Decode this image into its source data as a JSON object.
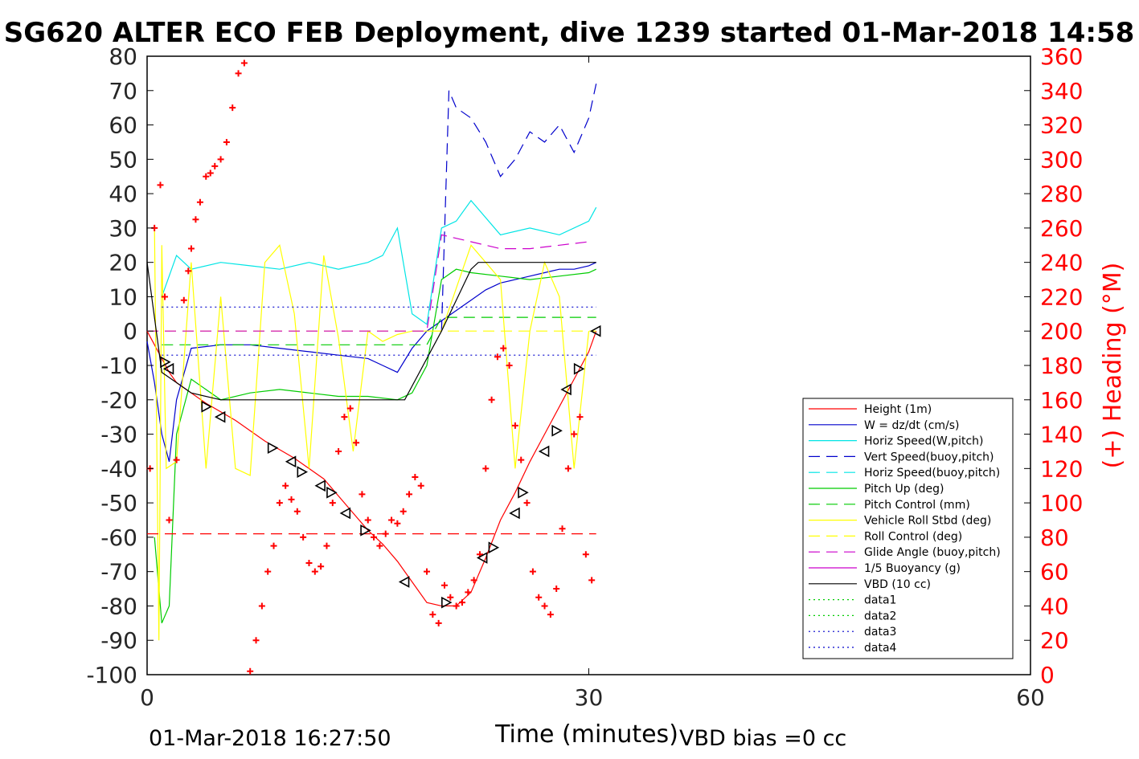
{
  "chart_data": {
    "type": "line",
    "title": "SG620 ALTER ECO FEB Deployment, dive 1239 started 01-Mar-2018 14:58",
    "xlabel": "Time (minutes)",
    "ylabel_left": "",
    "ylabel_right": "(+) Heading (°M)",
    "xlim": [
      0,
      60
    ],
    "ylim_left": [
      -100,
      80
    ],
    "ylim_right": [
      0,
      360
    ],
    "xticks": [
      "0",
      "30",
      "60"
    ],
    "yticks_left": [
      "80",
      "70",
      "60",
      "50",
      "40",
      "30",
      "20",
      "10",
      "0",
      "-10",
      "-20",
      "-30",
      "-40",
      "-50",
      "-60",
      "-70",
      "-80",
      "-90",
      "-100"
    ],
    "yticks_right": [
      "360",
      "340",
      "320",
      "300",
      "280",
      "260",
      "240",
      "220",
      "200",
      "180",
      "160",
      "140",
      "120",
      "100",
      "80",
      "60",
      "40",
      "20",
      "0"
    ],
    "footer_left": "01-Mar-2018 16:27:50",
    "footer_right": "VBD bias =0 cc",
    "legend_position": "right-inside",
    "legend": [
      {
        "label": "Height (1m)",
        "color": "#ff0000",
        "style": "solid"
      },
      {
        "label": "W = dz/dt (cm/s)",
        "color": "#0000cc",
        "style": "solid"
      },
      {
        "label": "Horiz Speed(W,pitch)",
        "color": "#00e5e5",
        "style": "solid"
      },
      {
        "label": "Vert Speed(buoy,pitch)",
        "color": "#0000cc",
        "style": "dashed"
      },
      {
        "label": "Horiz Speed(buoy,pitch)",
        "color": "#00e5e5",
        "style": "dashed"
      },
      {
        "label": "Pitch Up (deg)",
        "color": "#00cc00",
        "style": "solid"
      },
      {
        "label": "Pitch Control (mm)",
        "color": "#00cc00",
        "style": "dashed"
      },
      {
        "label": "Vehicle Roll Stbd (deg)",
        "color": "#ffff00",
        "style": "solid"
      },
      {
        "label": "Roll Control (deg)",
        "color": "#ffff00",
        "style": "dashed"
      },
      {
        "label": "Glide Angle (buoy,pitch)",
        "color": "#cc00cc",
        "style": "dashed"
      },
      {
        "label": "1/5 Buoyancy (g)",
        "color": "#cc00cc",
        "style": "solid"
      },
      {
        "label": "VBD (10 cc)",
        "color": "#000000",
        "style": "solid"
      },
      {
        "label": "data1",
        "color": "#00cc00",
        "style": "dotted"
      },
      {
        "label": "data2",
        "color": "#00cc00",
        "style": "dotted"
      },
      {
        "label": "data3",
        "color": "#0000cc",
        "style": "dotted"
      },
      {
        "label": "data4",
        "color": "#0000cc",
        "style": "dotted"
      }
    ],
    "series": [
      {
        "name": "Height (1m)",
        "axis": "left",
        "color": "#ff0000",
        "x": [
          0,
          0.5,
          1,
          1.5,
          2,
          3,
          4,
          6,
          8,
          10,
          12,
          14,
          15,
          16,
          17,
          18,
          19,
          20,
          21,
          22,
          23,
          24,
          25,
          26,
          27,
          28,
          29,
          30,
          30.5
        ],
        "y": [
          0,
          -4,
          -8,
          -12,
          -15,
          -18,
          -21,
          -26,
          -32,
          -37,
          -43,
          -53,
          -58,
          -62,
          -67,
          -73,
          -79,
          -80,
          -80,
          -76,
          -66,
          -55,
          -47,
          -38,
          -30,
          -22,
          -14,
          -6,
          0
        ]
      },
      {
        "name": "W = dz/dt (cm/s)",
        "axis": "left",
        "color": "#0000cc",
        "x": [
          0,
          0.5,
          1,
          1.5,
          2,
          3,
          5,
          7,
          9,
          11,
          13,
          15,
          16,
          17,
          18,
          19,
          20,
          21,
          22,
          23,
          24,
          25,
          26,
          27,
          28,
          29,
          30,
          30.5
        ],
        "y": [
          -3,
          -15,
          -30,
          -38,
          -20,
          -5,
          -4,
          -4,
          -5,
          -6,
          -7,
          -8,
          -10,
          -12,
          -5,
          0,
          3,
          6,
          9,
          12,
          14,
          15,
          16,
          17,
          18,
          18,
          19,
          20
        ]
      },
      {
        "name": "Horiz Speed(W,pitch)",
        "axis": "left",
        "color": "#00e5e5",
        "x": [
          1,
          2,
          3,
          5,
          7,
          9,
          11,
          13,
          15,
          16,
          17,
          18,
          19,
          20,
          21,
          22,
          24,
          26,
          28,
          30,
          30.5
        ],
        "y": [
          10,
          22,
          18,
          20,
          19,
          18,
          20,
          18,
          20,
          22,
          30,
          5,
          2,
          30,
          32,
          38,
          28,
          30,
          28,
          32,
          36
        ]
      },
      {
        "name": "Vert Speed(buoy,pitch)",
        "axis": "left",
        "color": "#0000cc",
        "x": [
          20,
          20.5,
          21,
          22,
          23,
          24,
          25,
          26,
          27,
          28,
          29,
          30,
          30.5
        ],
        "y": [
          0,
          70,
          65,
          62,
          55,
          45,
          50,
          58,
          55,
          60,
          52,
          62,
          72
        ]
      },
      {
        "name": "Pitch Up (deg)",
        "axis": "left",
        "color": "#00cc00",
        "x": [
          0.5,
          1,
          1.5,
          2,
          3,
          5,
          7,
          9,
          11,
          13,
          15,
          17,
          18,
          19,
          20,
          21,
          22,
          24,
          26,
          28,
          30,
          30.5
        ],
        "y": [
          -60,
          -85,
          -80,
          -30,
          -14,
          -20,
          -18,
          -17,
          -18,
          -19,
          -19,
          -20,
          -18,
          -10,
          15,
          18,
          17,
          16,
          15,
          16,
          17,
          18
        ]
      },
      {
        "name": "Pitch Control (mm)",
        "axis": "left",
        "color": "#00cc00",
        "x": [
          1,
          19,
          20,
          30.5
        ],
        "y": [
          -4,
          -4,
          4,
          4
        ]
      },
      {
        "name": "Vehicle Roll Stbd (deg)",
        "axis": "left",
        "color": "#ffff00",
        "x": [
          0.5,
          0.8,
          1,
          1.3,
          2,
          3,
          4,
          5,
          6,
          7,
          8,
          9,
          10,
          11,
          12,
          13,
          14,
          15,
          16,
          17,
          18,
          20,
          22,
          24,
          25,
          26,
          27,
          28,
          29,
          30
        ],
        "y": [
          30,
          -90,
          25,
          -40,
          -38,
          20,
          -40,
          10,
          -40,
          -42,
          20,
          25,
          5,
          -40,
          22,
          -2,
          -35,
          0,
          -3,
          -1,
          0,
          0,
          25,
          15,
          -40,
          0,
          20,
          10,
          -40,
          0
        ]
      },
      {
        "name": "Roll Control (deg)",
        "axis": "left",
        "color": "#ffff00",
        "x": [
          0,
          30.5
        ],
        "y": [
          0,
          0
        ]
      },
      {
        "name": "Glide Angle (buoy,pitch)",
        "axis": "left",
        "color": "#cc00cc",
        "x": [
          0,
          19,
          20,
          22,
          24,
          26,
          28,
          30
        ],
        "y": [
          0,
          0,
          28,
          26,
          24,
          24,
          25,
          26
        ]
      },
      {
        "name": "VBD (10 cc)",
        "axis": "left",
        "color": "#000000",
        "x": [
          0,
          1,
          2,
          3,
          5,
          8,
          12,
          15,
          17.5,
          20,
          22,
          22.5,
          30.5
        ],
        "y": [
          20,
          -12,
          -15,
          -18,
          -20,
          -20,
          -20,
          -20,
          -20,
          0,
          18,
          20,
          20
        ]
      },
      {
        "name": "data3",
        "axis": "left",
        "color": "#0000cc",
        "x": [
          1,
          30.5
        ],
        "y": [
          7,
          7
        ]
      },
      {
        "name": "data4",
        "axis": "left",
        "color": "#0000cc",
        "x": [
          1,
          30.5
        ],
        "y": [
          -7,
          -7
        ]
      },
      {
        "name": "",
        "axis": "left",
        "color": "#ff0000",
        "x": [
          0,
          30.5
        ],
        "y": [
          -59,
          -59
        ]
      }
    ],
    "heading": {
      "axis": "right",
      "color": "#ff0000",
      "marker": "+",
      "x": [
        0.2,
        0.5,
        0.9,
        1.2,
        1.5,
        2.0,
        2.5,
        2.8,
        3.0,
        3.3,
        3.6,
        4.0,
        4.3,
        4.6,
        5.0,
        5.4,
        5.8,
        6.2,
        6.6,
        7.0,
        7.4,
        7.8,
        8.2,
        8.6,
        9.0,
        9.4,
        9.8,
        10.2,
        10.6,
        11.0,
        11.4,
        11.8,
        12.2,
        12.6,
        13.0,
        13.4,
        13.8,
        14.2,
        14.6,
        15.0,
        15.4,
        15.8,
        16.2,
        16.6,
        17.0,
        17.4,
        17.8,
        18.2,
        18.6,
        19.0,
        19.4,
        19.8,
        20.2,
        20.6,
        21.0,
        21.4,
        21.8,
        22.2,
        22.6,
        23.0,
        23.4,
        23.8,
        24.2,
        24.6,
        25.0,
        25.4,
        25.8,
        26.2,
        26.6,
        27.0,
        27.4,
        27.8,
        28.2,
        28.6,
        29.0,
        29.4,
        29.8,
        30.2
      ],
      "y": [
        120,
        260,
        285,
        220,
        90,
        125,
        218,
        235,
        248,
        265,
        275,
        290,
        292,
        296,
        300,
        310,
        330,
        350,
        356,
        2,
        20,
        40,
        60,
        75,
        100,
        110,
        102,
        95,
        80,
        65,
        60,
        63,
        75,
        100,
        130,
        150,
        155,
        135,
        105,
        90,
        80,
        75,
        82,
        90,
        88,
        95,
        105,
        115,
        110,
        60,
        35,
        30,
        52,
        45,
        40,
        42,
        48,
        55,
        70,
        120,
        160,
        185,
        190,
        180,
        145,
        125,
        100,
        60,
        45,
        40,
        35,
        50,
        85,
        120,
        140,
        150,
        70,
        55
      ]
    },
    "glider_markers": {
      "axis": "left",
      "shape": "triangle",
      "color": "#000000",
      "x": [
        1.2,
        1.5,
        4,
        5,
        8.5,
        9.8,
        10.5,
        11.8,
        12.5,
        13.5,
        14.8,
        17.5,
        20.3,
        22.8,
        23.5,
        25,
        25.5,
        27,
        27.8,
        28.5,
        29.3,
        30.5
      ],
      "y": [
        -9,
        -11,
        -22,
        -25,
        -34,
        -38,
        -41,
        -45,
        -47,
        -53,
        -58,
        -73,
        -79,
        -66,
        -63,
        -53,
        -47,
        -35,
        -29,
        -17,
        -11,
        0
      ]
    }
  }
}
